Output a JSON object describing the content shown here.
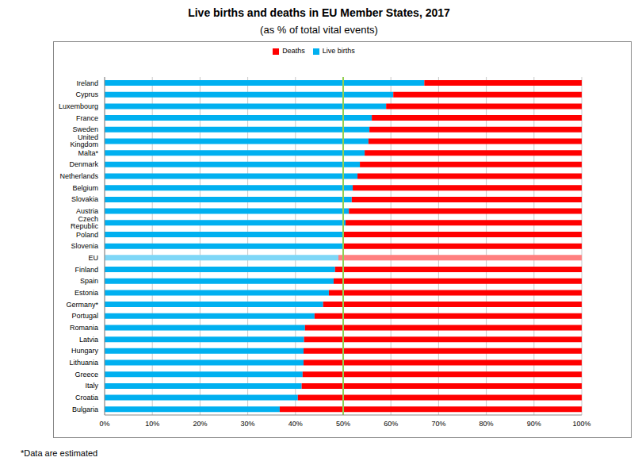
{
  "chart_data": {
    "type": "bar",
    "title": "Live births and deaths in EU Member States, 2017",
    "subtitle": "(as % of total vital events)",
    "footnote": "*Data are estimated",
    "orientation": "horizontal",
    "stacked": true,
    "grid": true,
    "legend": "top",
    "categories": [
      "Ireland",
      "Cyprus",
      "Luxembourg",
      "France",
      "Sweden",
      "United Kingdom",
      "Malta*",
      "Denmark",
      "Netherlands",
      "Belgium",
      "Slovakia",
      "Austria",
      "Czech Republic",
      "Poland",
      "Slovenia",
      "EU",
      "Finland",
      "Spain",
      "Estonia",
      "Germany*",
      "Portugal",
      "Romania",
      "Latvia",
      "Hungary",
      "Lithuania",
      "Greece",
      "Italy",
      "Croatia",
      "Bulgaria"
    ],
    "series": [
      {
        "name": "Live births",
        "color": "#00b0f0",
        "colors": [
          "#00b0f0",
          "#00b0f0",
          "#00b0f0",
          "#00b0f0",
          "#00b0f0",
          "#00b0f0",
          "#00b0f0",
          "#00b0f0",
          "#00b0f0",
          "#00b0f0",
          "#00b0f0",
          "#00b0f0",
          "#00b0f0",
          "#00b0f0",
          "#00b0f0",
          "#7fd7f7",
          "#00b0f0",
          "#00b0f0",
          "#00b0f0",
          "#00b0f0",
          "#00b0f0",
          "#00b0f0",
          "#00b0f0",
          "#00b0f0",
          "#00b0f0",
          "#00b0f0",
          "#00b0f0",
          "#00b0f0",
          "#00b0f0"
        ],
        "values": [
          67,
          60.5,
          59,
          56,
          55.5,
          55.3,
          54.5,
          53.5,
          53,
          52,
          51.8,
          51.2,
          50.5,
          50.1,
          50,
          49,
          48.3,
          48,
          47,
          45.8,
          44,
          42,
          41.8,
          41.7,
          41.7,
          41.5,
          41.3,
          40.5,
          36.7
        ]
      },
      {
        "name": "Deaths",
        "color": "#ff0000",
        "colors": [
          "#ff0000",
          "#ff0000",
          "#ff0000",
          "#ff0000",
          "#ff0000",
          "#ff0000",
          "#ff0000",
          "#ff0000",
          "#ff0000",
          "#ff0000",
          "#ff0000",
          "#ff0000",
          "#ff0000",
          "#ff0000",
          "#ff0000",
          "#ff8080",
          "#ff0000",
          "#ff0000",
          "#ff0000",
          "#ff0000",
          "#ff0000",
          "#ff0000",
          "#ff0000",
          "#ff0000",
          "#ff0000",
          "#ff0000",
          "#ff0000",
          "#ff0000",
          "#ff0000"
        ],
        "values": [
          33,
          39.5,
          41,
          44,
          44.5,
          44.7,
          45.5,
          46.5,
          47,
          48,
          48.2,
          48.8,
          49.5,
          49.9,
          50,
          51,
          51.7,
          52,
          53,
          54.2,
          56,
          58,
          58.2,
          58.3,
          58.3,
          58.5,
          58.7,
          59.5,
          63.3
        ]
      }
    ],
    "xlim": [
      0,
      100
    ],
    "xticks": [
      {
        "value": 0,
        "label": "0%"
      },
      {
        "value": 10,
        "label": "10%"
      },
      {
        "value": 20,
        "label": "20%"
      },
      {
        "value": 30,
        "label": "30%"
      },
      {
        "value": 40,
        "label": "40%"
      },
      {
        "value": 50,
        "label": "50%"
      },
      {
        "value": 60,
        "label": "60%"
      },
      {
        "value": 70,
        "label": "70%"
      },
      {
        "value": 80,
        "label": "80%"
      },
      {
        "value": 90,
        "label": "90%"
      },
      {
        "value": 100,
        "label": "100%"
      }
    ],
    "reference_line": {
      "value": 50,
      "color": "#92d050"
    }
  }
}
